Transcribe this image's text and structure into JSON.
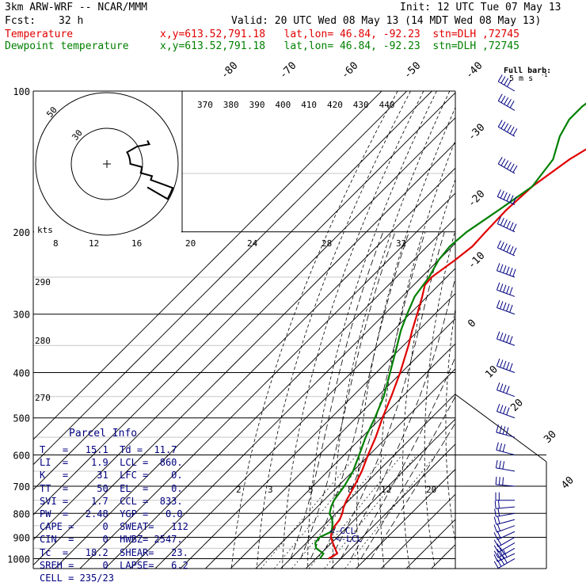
{
  "header": {
    "model": "3km ARW-WRF -- NCAR/MMM",
    "init": "Init: 12 UTC Tue 07 May 13",
    "fcst_label": "Fcst:",
    "fcst_hours": "32 h",
    "valid": "Valid: 20 UTC Wed 08 May 13 (14 MDT Wed 08 May 13)",
    "temp_label": "Temperature",
    "temp_info": "x,y=613.52,791.18   lat,lon= 46.84, -92.23  stn=DLH ,72745",
    "dew_label": "Dewpoint temperature",
    "dew_info": "x,y=613.52,791.18   lat,lon= 46.84, -92.23  stn=DLH ,72745"
  },
  "barb_key": {
    "line1": "Full barb:",
    "line2": "5 m s"
  },
  "hodograph": {
    "unit": "kts",
    "ring_labels": [
      "30",
      "50"
    ]
  },
  "parcel_info": {
    "title": "Parcel Info",
    "rows": [
      "T   =   15.1  Td =  11.7",
      "LI  =    1.9  LCL =  860.",
      "K   =     31  LFC =    0.",
      "TT  =     50  EL  =    0.",
      "SVI =    1.7  CCL =  833.",
      "PW  =   2.48  YGP =   0.0",
      "CAPE =     0  SWEAT=   112",
      "CIN  =     0  HWBZ= 2547.",
      "Tc  =   18.2  SHEAR=   23.",
      "SREH =     0  LAPSE=   6.2",
      "CELL = 235/23"
    ]
  },
  "levels": {
    "ccl": "CCL",
    "lcl": "LCL"
  },
  "colors": {
    "temperature": "#e00000",
    "dewpoint": "#008000",
    "barbs": "#000080",
    "parcel_text": "#000080"
  },
  "chart_data": {
    "type": "line",
    "title": "",
    "xlabel": "",
    "ylabel": "",
    "pressure_levels": [
      100,
      200,
      300,
      400,
      500,
      600,
      700,
      800,
      900,
      1000
    ],
    "isotherm_labels": [
      "-80",
      "-70",
      "-60",
      "-50",
      "-40",
      "-30",
      "-20",
      "-10",
      "0",
      "10",
      "20",
      "30",
      "40"
    ],
    "theta_labels": [
      "370",
      "380",
      "390",
      "400",
      "410",
      "420",
      "430",
      "440"
    ],
    "theta_left_labels": [
      "290",
      "280",
      "270"
    ],
    "mixing_ratio_labels": [
      "8",
      "12",
      "16",
      "20",
      "24",
      "28",
      "32"
    ],
    "mixing_ratio_lower_labels": [
      "2",
      "3",
      "5",
      "8",
      "12",
      "20"
    ],
    "series": [
      {
        "name": "Temperature",
        "color": "#e00000",
        "points": [
          [
            1000,
            15.1
          ],
          [
            975,
            16.5
          ],
          [
            950,
            13.5
          ],
          [
            925,
            10.5
          ],
          [
            900,
            7.5
          ],
          [
            875,
            5.5
          ],
          [
            850,
            4.5
          ],
          [
            825,
            4.0
          ],
          [
            800,
            2.5
          ],
          [
            775,
            0.5
          ],
          [
            750,
            -1.0
          ],
          [
            700,
            -3.5
          ],
          [
            650,
            -6.5
          ],
          [
            600,
            -10.5
          ],
          [
            550,
            -14.5
          ],
          [
            500,
            -19.5
          ],
          [
            450,
            -24.5
          ],
          [
            400,
            -30.5
          ],
          [
            350,
            -38.0
          ],
          [
            325,
            -42.5
          ],
          [
            300,
            -47.0
          ],
          [
            275,
            -52.0
          ],
          [
            260,
            -55.5
          ],
          [
            250,
            -56.0
          ],
          [
            230,
            -53.5
          ],
          [
            215,
            -52.0
          ],
          [
            200,
            -52.5
          ],
          [
            180,
            -53.0
          ],
          [
            160,
            -52.0
          ],
          [
            140,
            -48.0
          ],
          [
            125,
            -42.0
          ],
          [
            115,
            -39.0
          ],
          [
            108,
            -37.0
          ],
          [
            100,
            -36.0
          ]
        ]
      },
      {
        "name": "Dewpoint temperature",
        "color": "#008000",
        "points": [
          [
            1000,
            11.7
          ],
          [
            975,
            11.0
          ],
          [
            950,
            6.0
          ],
          [
            925,
            3.5
          ],
          [
            900,
            3.0
          ],
          [
            875,
            5.5
          ],
          [
            850,
            3.5
          ],
          [
            825,
            1.0
          ],
          [
            800,
            -2.5
          ],
          [
            775,
            -4.5
          ],
          [
            750,
            -6.0
          ],
          [
            700,
            -7.5
          ],
          [
            650,
            -10.0
          ],
          [
            600,
            -14.0
          ],
          [
            550,
            -18.5
          ],
          [
            500,
            -22.5
          ],
          [
            450,
            -27.5
          ],
          [
            400,
            -34.5
          ],
          [
            350,
            -42.5
          ],
          [
            325,
            -47.0
          ],
          [
            300,
            -51.0
          ],
          [
            275,
            -55.0
          ],
          [
            250,
            -57.0
          ],
          [
            230,
            -60.0
          ],
          [
            215,
            -61.0
          ],
          [
            200,
            -60.0
          ],
          [
            180,
            -56.0
          ],
          [
            160,
            -52.0
          ],
          [
            140,
            -54.5
          ],
          [
            125,
            -61.0
          ],
          [
            115,
            -64.0
          ],
          [
            108,
            -64.0
          ],
          [
            100,
            -62.0
          ]
        ]
      }
    ],
    "wind_barbs": [
      {
        "p": 1000,
        "dir": 240,
        "spd": 20
      },
      {
        "p": 975,
        "dir": 245,
        "spd": 20
      },
      {
        "p": 950,
        "dir": 240,
        "spd": 15
      },
      {
        "p": 925,
        "dir": 240,
        "spd": 10
      },
      {
        "p": 900,
        "dir": 240,
        "spd": 10
      },
      {
        "p": 875,
        "dir": 245,
        "spd": 10
      },
      {
        "p": 850,
        "dir": 250,
        "spd": 10
      },
      {
        "p": 825,
        "dir": 255,
        "spd": 10
      },
      {
        "p": 800,
        "dir": 260,
        "spd": 10
      },
      {
        "p": 775,
        "dir": 265,
        "spd": 10
      },
      {
        "p": 750,
        "dir": 270,
        "spd": 10
      },
      {
        "p": 700,
        "dir": 275,
        "spd": 15
      },
      {
        "p": 650,
        "dir": 280,
        "spd": 15
      },
      {
        "p": 600,
        "dir": 285,
        "spd": 15
      },
      {
        "p": 550,
        "dir": 285,
        "spd": 20
      },
      {
        "p": 500,
        "dir": 290,
        "spd": 20
      },
      {
        "p": 450,
        "dir": 290,
        "spd": 20
      },
      {
        "p": 400,
        "dir": 290,
        "spd": 25
      },
      {
        "p": 350,
        "dir": 290,
        "spd": 25
      },
      {
        "p": 300,
        "dir": 290,
        "spd": 25
      },
      {
        "p": 275,
        "dir": 290,
        "spd": 25
      },
      {
        "p": 250,
        "dir": 290,
        "spd": 30
      },
      {
        "p": 225,
        "dir": 295,
        "spd": 30
      },
      {
        "p": 200,
        "dir": 295,
        "spd": 30
      },
      {
        "p": 175,
        "dir": 295,
        "spd": 30
      },
      {
        "p": 150,
        "dir": 300,
        "spd": 30
      },
      {
        "p": 125,
        "dir": 300,
        "spd": 30
      },
      {
        "p": 110,
        "dir": 300,
        "spd": 25
      },
      {
        "p": 100,
        "dir": 300,
        "spd": 20
      }
    ]
  }
}
